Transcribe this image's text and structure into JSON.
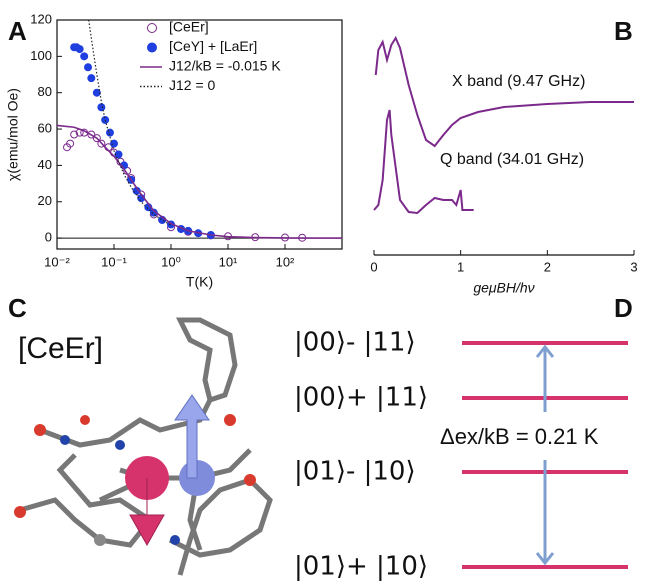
{
  "panel_labels": [
    "A",
    "B",
    "C",
    "D"
  ],
  "chart_data": [
    {
      "type": "line",
      "xlabel": "T(K)",
      "ylabel": "χ(emu/mol Oe)",
      "log_x": true,
      "xlim": [
        0.01,
        1000
      ],
      "ylim": [
        -6,
        120
      ],
      "xticks": [
        {
          "value": 0.01,
          "label": "10⁻²"
        },
        {
          "value": 0.1,
          "label": "10⁻¹"
        },
        {
          "value": 1,
          "label": "10⁰"
        },
        {
          "value": 10,
          "label": "10¹"
        },
        {
          "value": 100,
          "label": "10²"
        }
      ],
      "yticks": [
        0,
        20,
        40,
        60,
        80,
        100,
        120
      ],
      "series": [
        {
          "name": "[CeEr]",
          "style": "open",
          "color": "#7b2a8c",
          "x": [
            0.015,
            0.017,
            0.02,
            0.025,
            0.03,
            0.04,
            0.05,
            0.06,
            0.08,
            0.1,
            0.13,
            0.17,
            0.2,
            0.3,
            0.5,
            0.7,
            1,
            2,
            5,
            10,
            30,
            100,
            200
          ],
          "values": [
            50,
            52,
            57,
            58,
            58,
            57,
            55,
            52,
            50,
            47,
            42,
            37,
            33,
            24,
            13,
            10,
            6,
            3.5,
            1.5,
            1,
            0.5,
            0.3,
            0.2
          ]
        },
        {
          "name": "[CeY] + [LaEr]",
          "style": "filled",
          "color": "#1f3fe0",
          "x": [
            0.02,
            0.022,
            0.025,
            0.03,
            0.035,
            0.04,
            0.05,
            0.06,
            0.07,
            0.085,
            0.1,
            0.12,
            0.15,
            0.2,
            0.25,
            0.3,
            0.4,
            0.5,
            0.7,
            1,
            1.5,
            2,
            3,
            5
          ],
          "values": [
            105,
            105,
            104,
            100,
            94,
            88,
            80,
            72,
            65,
            58,
            52,
            46,
            40,
            32,
            26,
            22,
            17,
            14,
            10,
            7.5,
            5,
            4,
            2.7,
            1.7
          ]
        },
        {
          "name": "J12/kB = -0.015 K",
          "style": "line",
          "color": "#7b2a8c",
          "x": [
            0.01,
            0.02,
            0.03,
            0.05,
            0.07,
            0.1,
            0.15,
            0.2,
            0.3,
            0.5,
            1,
            2,
            5,
            10,
            30,
            100,
            300,
            1000
          ],
          "values": [
            62,
            61,
            59,
            55,
            50,
            45,
            38,
            32,
            24,
            15,
            8,
            4,
            1.7,
            0.8,
            0.3,
            0.08,
            0.03,
            0.01
          ]
        },
        {
          "name": "J12 = 0",
          "style": "dotted",
          "color": "#222222",
          "x": [
            0.036,
            0.04,
            0.05,
            0.06,
            0.07,
            0.1,
            0.15,
            0.2,
            0.3,
            0.5,
            1
          ],
          "values": [
            120,
            110,
            90,
            75,
            65,
            48,
            35,
            28,
            20,
            13,
            7
          ]
        }
      ]
    },
    {
      "type": "line",
      "xlabel": "geμBH/hν",
      "xlim": [
        0,
        3
      ],
      "xticks": [
        0,
        1,
        2,
        3
      ],
      "series": [
        {
          "name": "X band (9.47 GHz)",
          "color": "#7b2a8c",
          "x": [
            0.02,
            0.05,
            0.1,
            0.15,
            0.2,
            0.25,
            0.3,
            0.4,
            0.5,
            0.6,
            0.7,
            0.8,
            0.9,
            1.0,
            1.2,
            1.5,
            2.0,
            2.5,
            3.0
          ],
          "values": [
            165,
            190,
            198,
            180,
            195,
            202,
            192,
            155,
            125,
            100,
            94,
            105,
            115,
            122,
            128,
            133,
            136,
            138,
            138
          ]
        },
        {
          "name": "Q band (34.01 GHz)",
          "color": "#7b2a8c",
          "x": [
            0.0,
            0.05,
            0.1,
            0.15,
            0.18,
            0.2,
            0.3,
            0.4,
            0.5,
            0.6,
            0.7,
            0.8,
            0.9,
            0.95,
            1.0,
            1.02,
            1.1,
            1.15
          ],
          "values": [
            30,
            35,
            60,
            120,
            130,
            105,
            40,
            28,
            27,
            35,
            42,
            40,
            40,
            35,
            50,
            30,
            30,
            30
          ]
        }
      ]
    }
  ],
  "molecule": {
    "label": "[CeEr]"
  },
  "energy_diagram": {
    "levels": [
      "|00⟩- |11⟩",
      "|00⟩+ |11⟩",
      "|01⟩- |10⟩",
      "|01⟩+ |10⟩"
    ],
    "splitting": "Δex/kB = 0.21 K"
  }
}
